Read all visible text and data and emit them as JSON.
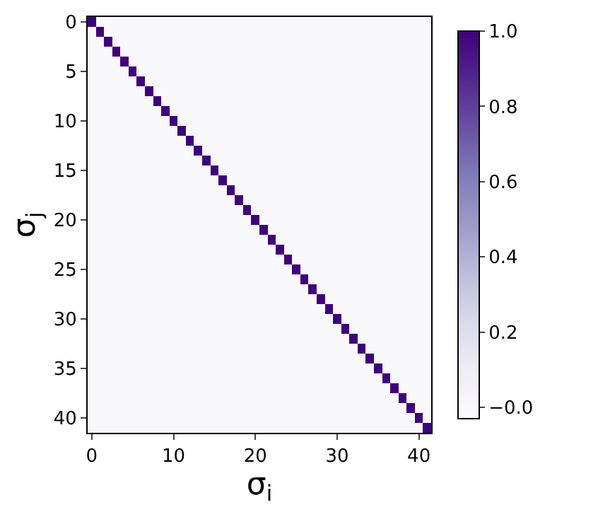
{
  "chart_data": {
    "type": "heatmap",
    "xlabel": "σ$_{i}$",
    "ylabel": "σ$_{j}$",
    "categories": [
      "0",
      null,
      null,
      null,
      null,
      null,
      null,
      null,
      null,
      null,
      "10",
      null,
      null,
      null,
      null,
      null,
      null,
      null,
      null,
      null,
      "20",
      null,
      null,
      null,
      null,
      null,
      null,
      null,
      null,
      null,
      "30",
      null,
      null,
      null,
      null,
      null,
      null,
      null,
      null,
      null,
      "40",
      null
    ],
    "y_categories": [
      "0",
      null,
      null,
      null,
      null,
      "5",
      null,
      null,
      null,
      null,
      "10",
      null,
      null,
      null,
      null,
      "15",
      null,
      null,
      null,
      null,
      "20",
      null,
      null,
      null,
      null,
      "25",
      null,
      null,
      null,
      null,
      "30",
      null,
      null,
      null,
      null,
      "35",
      null,
      null,
      null,
      null,
      "40",
      null
    ],
    "clim": [
      -0.03,
      1.0
    ],
    "cticks": [
      {
        "value": 0,
        "label": "−0.0"
      },
      0.2,
      0.4,
      0.6,
      0.8,
      {
        "value": 1,
        "label": "1.0"
      }
    ],
    "cells": [
      [
        1,
        0,
        0,
        0,
        0,
        0,
        0,
        0,
        0,
        0,
        0,
        0,
        0,
        0,
        0,
        0,
        0,
        0,
        0,
        0,
        0,
        0,
        0,
        0,
        0,
        0,
        0,
        0,
        0,
        0,
        0,
        0,
        0,
        0,
        0,
        0,
        0,
        0,
        0,
        0,
        0,
        0
      ],
      [
        0,
        1,
        0,
        0,
        0,
        0,
        0,
        0,
        0,
        0,
        0,
        0,
        0,
        0,
        0,
        0,
        0,
        0,
        0,
        0,
        0,
        0,
        0,
        0,
        0,
        0,
        0,
        0,
        0,
        0,
        0,
        0,
        0,
        0,
        0,
        0,
        0,
        0,
        0,
        0,
        0,
        0
      ],
      [
        0,
        0,
        1,
        0,
        0,
        0,
        0,
        0,
        0,
        0,
        0,
        0,
        0,
        0,
        0,
        0,
        0,
        0,
        0,
        0,
        0,
        0,
        0,
        0,
        0,
        0,
        0,
        0,
        0,
        0,
        0,
        0,
        0,
        0,
        0,
        0,
        0,
        0,
        0,
        0,
        0,
        0
      ],
      [
        0,
        0,
        0,
        1,
        0,
        0,
        0,
        0,
        0,
        0,
        0,
        0,
        0,
        0,
        0,
        0,
        0,
        0,
        0,
        0,
        0,
        0,
        0,
        0,
        0,
        0,
        0,
        0,
        0,
        0,
        0,
        0,
        0,
        0,
        0,
        0,
        0,
        0,
        0,
        0,
        0,
        0
      ],
      [
        0,
        0,
        0,
        0,
        1,
        0,
        0,
        0,
        0,
        0,
        0,
        0,
        0,
        0,
        0,
        0,
        0,
        0,
        0,
        0,
        0,
        0,
        0,
        0,
        0,
        0,
        0,
        0,
        0,
        0,
        0,
        0,
        0,
        0,
        0,
        0,
        0,
        0,
        0,
        0,
        0,
        0
      ],
      [
        0,
        0,
        0,
        0,
        0,
        1,
        0,
        0,
        0,
        0,
        0,
        0,
        0,
        0,
        0,
        0,
        0,
        0,
        0,
        0,
        0,
        0,
        0,
        0,
        0,
        0,
        0,
        0,
        0,
        0,
        0,
        0,
        0,
        0,
        0,
        0,
        0,
        0,
        0,
        0,
        0,
        0
      ],
      [
        0,
        0,
        0,
        0,
        0,
        0,
        1,
        0,
        0,
        0,
        0,
        0,
        0,
        0,
        0,
        0,
        0,
        0,
        0,
        0,
        0,
        0,
        0,
        0,
        0,
        0,
        0,
        0,
        0,
        0,
        0,
        0,
        0,
        0,
        0,
        0,
        0,
        0,
        0,
        0,
        0,
        0
      ],
      [
        0,
        0,
        0,
        0,
        0,
        0,
        0,
        1,
        0,
        0,
        0,
        0,
        0,
        0,
        0,
        0,
        0,
        0,
        0,
        0,
        0,
        0,
        0,
        0,
        0,
        0,
        0,
        0,
        0,
        0,
        0,
        0,
        0,
        0,
        0,
        0,
        0,
        0,
        0,
        0,
        0,
        0
      ],
      [
        0,
        0,
        0,
        0,
        0,
        0,
        0,
        0,
        1,
        0,
        0,
        0,
        0,
        0,
        0,
        0,
        0,
        0,
        0,
        0,
        0,
        0,
        0,
        0,
        0,
        0,
        0,
        0,
        0,
        0,
        0,
        0,
        0,
        0,
        0,
        0,
        0,
        0,
        0,
        0,
        0,
        0
      ],
      [
        0,
        0,
        0,
        0,
        0,
        0,
        0,
        0,
        0,
        1,
        0,
        0,
        0,
        0,
        0,
        0,
        0,
        0,
        0,
        0,
        0,
        0,
        0,
        0,
        0,
        0,
        0,
        0,
        0,
        0,
        0,
        0,
        0,
        0,
        0,
        0,
        0,
        0,
        0,
        0,
        0,
        0
      ],
      [
        0,
        0,
        0,
        0,
        0,
        0,
        0,
        0,
        0,
        0,
        1,
        0,
        0,
        0,
        0,
        0,
        0,
        0,
        0,
        0,
        0,
        0,
        0,
        0,
        0,
        0,
        0,
        0,
        0,
        0,
        0,
        0,
        0,
        0,
        0,
        0,
        0,
        0,
        0,
        0,
        0,
        0
      ],
      [
        0,
        0,
        0,
        0,
        0,
        0,
        0,
        0,
        0,
        0,
        0,
        1,
        0,
        0,
        0,
        0,
        0,
        0,
        0,
        0,
        0,
        0,
        0,
        0,
        0,
        0,
        0,
        0,
        0,
        0,
        0,
        0,
        0,
        0,
        0,
        0,
        0,
        0,
        0,
        0,
        0,
        0
      ],
      [
        0,
        0,
        0,
        0,
        0,
        0,
        0,
        0,
        0,
        0,
        0,
        0,
        1,
        0,
        0,
        0,
        0,
        0,
        0,
        0,
        0,
        0,
        0,
        0,
        0,
        0,
        0,
        0,
        0,
        0,
        0,
        0,
        0,
        0,
        0,
        0,
        0,
        0,
        0,
        0,
        0,
        0
      ],
      [
        0,
        0,
        0,
        0,
        0,
        0,
        0,
        0,
        0,
        0,
        0,
        0,
        0,
        1,
        0,
        0,
        0,
        0,
        0,
        0,
        0,
        0,
        0,
        0,
        0,
        0,
        0,
        0,
        0,
        0,
        0,
        0,
        0,
        0,
        0,
        0,
        0,
        0,
        0,
        0,
        0,
        0
      ],
      [
        0,
        0,
        0,
        0,
        0,
        0,
        0,
        0,
        0,
        0,
        0,
        0,
        0,
        0,
        1,
        0,
        0,
        0,
        0,
        0,
        0,
        0,
        0,
        0,
        0,
        0,
        0,
        0,
        0,
        0,
        0,
        0,
        0,
        0,
        0,
        0,
        0,
        0,
        0,
        0,
        0,
        0
      ],
      [
        0,
        0,
        0,
        0,
        0,
        0,
        0,
        0,
        0,
        0,
        0,
        0,
        0,
        0,
        0,
        1,
        0,
        0,
        0,
        0,
        0,
        0,
        0,
        0,
        0,
        0,
        0,
        0,
        0,
        0,
        0,
        0,
        0,
        0,
        0,
        0,
        0,
        0,
        0,
        0,
        0,
        0
      ],
      [
        0,
        0,
        0,
        0,
        0,
        0,
        0,
        0,
        0,
        0,
        0,
        0,
        0,
        0,
        0,
        0,
        1,
        0,
        0,
        0,
        0,
        0,
        0,
        0,
        0,
        0,
        0,
        0,
        0,
        0,
        0,
        0,
        0,
        0,
        0,
        0,
        0,
        0,
        0,
        0,
        0,
        0
      ],
      [
        0,
        0,
        0,
        0,
        0,
        0,
        0,
        0,
        0,
        0,
        0,
        0,
        0,
        0,
        0,
        0,
        0,
        1,
        0,
        0,
        0,
        0,
        0,
        0,
        0,
        0,
        0,
        0,
        0,
        0,
        0,
        0,
        0,
        0,
        0,
        0,
        0,
        0,
        0,
        0,
        0,
        0
      ],
      [
        0,
        0,
        0,
        0,
        0,
        0,
        0,
        0,
        0,
        0,
        0,
        0,
        0,
        0,
        0,
        0,
        0,
        0,
        1,
        0,
        0,
        0,
        0,
        0,
        0,
        0,
        0,
        0,
        0,
        0,
        0,
        0,
        0,
        0,
        0,
        0,
        0,
        0,
        0,
        0,
        0,
        0
      ],
      [
        0,
        0,
        0,
        0,
        0,
        0,
        0,
        0,
        0,
        0,
        0,
        0,
        0,
        0,
        0,
        0,
        0,
        0,
        0,
        1,
        0,
        0,
        0,
        0,
        0,
        0,
        0,
        0,
        0,
        0,
        0,
        0,
        0,
        0,
        0,
        0,
        0,
        0,
        0,
        0,
        0,
        0
      ],
      [
        0,
        0,
        0,
        0,
        0,
        0,
        0,
        0,
        0,
        0,
        0,
        0,
        0,
        0,
        0,
        0,
        0,
        0,
        0,
        0,
        1,
        0,
        0,
        0,
        0,
        0,
        0,
        0,
        0,
        0,
        0,
        0,
        0,
        0,
        0,
        0,
        0,
        0,
        0,
        0,
        0,
        0
      ],
      [
        0,
        0,
        0,
        0,
        0,
        0,
        0,
        0,
        0,
        0,
        0,
        0,
        0,
        0,
        0,
        0,
        0,
        0,
        0,
        0,
        0,
        1,
        0,
        0,
        0,
        0,
        0,
        0,
        0,
        0,
        0,
        0,
        0,
        0,
        0,
        0,
        0,
        0,
        0,
        0,
        0,
        0
      ],
      [
        0,
        0,
        0,
        0,
        0,
        0,
        0,
        0,
        0,
        0,
        0,
        0,
        0,
        0,
        0,
        0,
        0,
        0,
        0,
        0,
        0,
        0,
        1,
        0,
        0,
        0,
        0,
        0,
        0,
        0,
        0,
        0,
        0,
        0,
        0,
        0,
        0,
        0,
        0,
        0,
        0,
        0
      ],
      [
        0,
        0,
        0,
        0,
        0,
        0,
        0,
        0,
        0,
        0,
        0,
        0,
        0,
        0,
        0,
        0,
        0,
        0,
        0,
        0,
        0,
        0,
        0,
        1,
        0,
        0,
        0,
        0,
        0,
        0,
        0,
        0,
        0,
        0,
        0,
        0,
        0,
        0,
        0,
        0,
        0,
        0
      ],
      [
        0,
        0,
        0,
        0,
        0,
        0,
        0,
        0,
        0,
        0,
        0,
        0,
        0,
        0,
        0,
        0,
        0,
        0,
        0,
        0,
        0,
        0,
        0,
        0,
        1,
        0,
        0,
        0,
        0,
        0,
        0,
        0,
        0,
        0,
        0,
        0,
        0,
        0,
        0,
        0,
        0,
        0
      ],
      [
        0,
        0,
        0,
        0,
        0,
        0,
        0,
        0,
        0,
        0,
        0,
        0,
        0,
        0,
        0,
        0,
        0,
        0,
        0,
        0,
        0,
        0,
        0,
        0,
        0,
        1,
        0,
        0,
        0,
        0,
        0,
        0,
        0,
        0,
        0,
        0,
        0,
        0,
        0,
        0,
        0,
        0
      ],
      [
        0,
        0,
        0,
        0,
        0,
        0,
        0,
        0,
        0,
        0,
        0,
        0,
        0,
        0,
        0,
        0,
        0,
        0,
        0,
        0,
        0,
        0,
        0,
        0,
        0,
        0,
        1,
        0,
        0,
        0,
        0,
        0,
        0,
        0,
        0,
        0,
        0,
        0,
        0,
        0,
        0,
        0
      ],
      [
        0,
        0,
        0,
        0,
        0,
        0,
        0,
        0,
        0,
        0,
        0,
        0,
        0,
        0,
        0,
        0,
        0,
        0,
        0,
        0,
        0,
        0,
        0,
        0,
        0,
        0,
        0,
        1,
        0,
        0,
        0,
        0,
        0,
        0,
        0,
        0,
        0,
        0,
        0,
        0,
        0,
        0
      ],
      [
        0,
        0,
        0,
        0,
        0,
        0,
        0,
        0,
        0,
        0,
        0,
        0,
        0,
        0,
        0,
        0,
        0,
        0,
        0,
        0,
        0,
        0,
        0,
        0,
        0,
        0,
        0,
        0,
        1,
        0,
        0,
        0,
        0,
        0,
        0,
        0,
        0,
        0,
        0,
        0,
        0,
        0
      ],
      [
        0,
        0,
        0,
        0,
        0,
        0,
        0,
        0,
        0,
        0,
        0,
        0,
        0,
        0,
        0,
        0,
        0,
        0,
        0,
        0,
        0,
        0,
        0,
        0,
        0,
        0,
        0,
        0,
        0,
        1,
        0,
        0,
        0,
        0,
        0,
        0,
        0,
        0,
        0,
        0,
        0,
        0
      ],
      [
        0,
        0,
        0,
        0,
        0,
        0,
        0,
        0,
        0,
        0,
        0,
        0,
        0,
        0,
        0,
        0,
        0,
        0,
        0,
        0,
        0,
        0,
        0,
        0,
        0,
        0,
        0,
        0,
        0,
        0,
        1,
        0,
        0,
        0,
        0,
        0,
        0,
        0,
        0,
        0,
        0,
        0
      ],
      [
        0,
        0,
        0,
        0,
        0,
        0,
        0,
        0,
        0,
        0,
        0,
        0,
        0,
        0,
        0,
        0,
        0,
        0,
        0,
        0,
        0,
        0,
        0,
        0,
        0,
        0,
        0,
        0,
        0,
        0,
        0,
        1,
        0,
        0,
        0,
        0,
        0,
        0,
        0,
        0,
        0,
        0
      ],
      [
        0,
        0,
        0,
        0,
        0,
        0,
        0,
        0,
        0,
        0,
        0,
        0,
        0,
        0,
        0,
        0,
        0,
        0,
        0,
        0,
        0,
        0,
        0,
        0,
        0,
        0,
        0,
        0,
        0,
        0,
        0,
        0,
        1,
        0,
        0,
        0,
        0,
        0,
        0,
        0,
        0,
        0
      ],
      [
        0,
        0,
        0,
        0,
        0,
        0,
        0,
        0,
        0,
        0,
        0,
        0,
        0,
        0,
        0,
        0,
        0,
        0,
        0,
        0,
        0,
        0,
        0,
        0,
        0,
        0,
        0,
        0,
        0,
        0,
        0,
        0,
        0,
        1,
        0,
        0,
        0,
        0,
        0,
        0,
        0,
        0
      ],
      [
        0,
        0,
        0,
        0,
        0,
        0,
        0,
        0,
        0,
        0,
        0,
        0,
        0,
        0,
        0,
        0,
        0,
        0,
        0,
        0,
        0,
        0,
        0,
        0,
        0,
        0,
        0,
        0,
        0,
        0,
        0,
        0,
        0,
        0,
        1,
        0,
        0,
        0,
        0,
        0,
        0,
        0
      ],
      [
        0,
        0,
        0,
        0,
        0,
        0,
        0,
        0,
        0,
        0,
        0,
        0,
        0,
        0,
        0,
        0,
        0,
        0,
        0,
        0,
        0,
        0,
        0,
        0,
        0,
        0,
        0,
        0,
        0,
        0,
        0,
        0,
        0,
        0,
        0,
        1,
        0,
        0,
        0,
        0,
        0,
        0
      ],
      [
        0,
        0,
        0,
        0,
        0,
        0,
        0,
        0,
        0,
        0,
        0,
        0,
        0,
        0,
        0,
        0,
        0,
        0,
        0,
        0,
        0,
        0,
        0,
        0,
        0,
        0,
        0,
        0,
        0,
        0,
        0,
        0,
        0,
        0,
        0,
        0,
        1,
        0,
        0,
        0,
        0,
        0
      ],
      [
        0,
        0,
        0,
        0,
        0,
        0,
        0,
        0,
        0,
        0,
        0,
        0,
        0,
        0,
        0,
        0,
        0,
        0,
        0,
        0,
        0,
        0,
        0,
        0,
        0,
        0,
        0,
        0,
        0,
        0,
        0,
        0,
        0,
        0,
        0,
        0,
        0,
        1,
        0,
        0,
        0,
        0
      ],
      [
        0,
        0,
        0,
        0,
        0,
        0,
        0,
        0,
        0,
        0,
        0,
        0,
        0,
        0,
        0,
        0,
        0,
        0,
        0,
        0,
        0,
        0,
        0,
        0,
        0,
        0,
        0,
        0,
        0,
        0,
        0,
        0,
        0,
        0,
        0,
        0,
        0,
        0,
        1,
        0,
        0,
        0
      ],
      [
        0,
        0,
        0,
        0,
        0,
        0,
        0,
        0,
        0,
        0,
        0,
        0,
        0,
        0,
        0,
        0,
        0,
        0,
        0,
        0,
        0,
        0,
        0,
        0,
        0,
        0,
        0,
        0,
        0,
        0,
        0,
        0,
        0,
        0,
        0,
        0,
        0,
        0,
        0,
        1,
        0,
        0
      ],
      [
        0,
        0,
        0,
        0,
        0,
        0,
        0,
        0,
        0,
        0,
        0,
        0,
        0,
        0,
        0,
        0,
        0,
        0,
        0,
        0,
        0,
        0,
        0,
        0,
        0,
        0,
        0,
        0,
        0,
        0,
        0,
        0,
        0,
        0,
        0,
        0,
        0,
        0,
        0,
        0,
        1,
        0
      ],
      [
        0,
        0,
        0,
        0,
        0,
        0,
        0,
        0,
        0,
        0,
        0,
        0,
        0,
        0,
        0,
        0,
        0,
        0,
        0,
        0,
        0,
        0,
        0,
        0,
        0,
        0,
        0,
        0,
        0,
        0,
        0,
        0,
        0,
        0,
        0,
        0,
        0,
        0,
        0,
        0,
        0,
        1
      ]
    ]
  }
}
